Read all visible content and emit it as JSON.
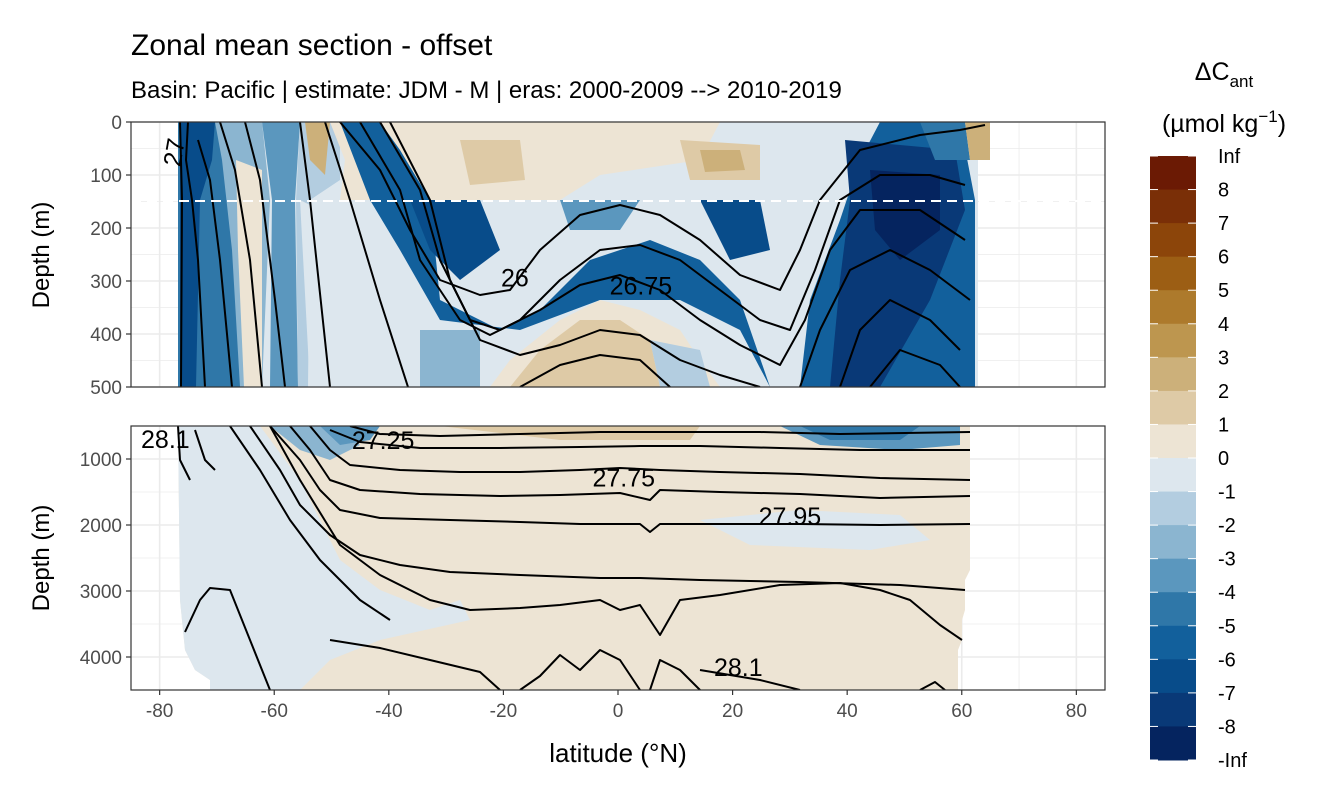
{
  "title": "Zonal mean section - offset",
  "subtitle": "Basin: Pacific | estimate: JDM - M | eras: 2000-2009 --> 2010-2019",
  "chart_data": {
    "type": "heatmap",
    "title": "Zonal mean section - offset",
    "subtitle": "Basin: Pacific | estimate: JDM - M | eras: 2000-2009 --> 2010-2019",
    "xlabel": "latitude (°N)",
    "ylabel": "Depth (m)",
    "xlim": [
      -85,
      85
    ],
    "x_ticks": [
      -80,
      -60,
      -40,
      -20,
      0,
      20,
      40,
      60,
      80
    ],
    "panels": [
      {
        "name": "upper",
        "ylim": [
          0,
          500
        ],
        "y_ticks": [
          0,
          100,
          200,
          300,
          400,
          500
        ],
        "reference_depth": 150
      },
      {
        "name": "lower",
        "ylim": [
          500,
          4500
        ],
        "y_ticks": [
          1000,
          2000,
          3000,
          4000
        ]
      }
    ],
    "data_extent_lat": [
      -77,
      62
    ],
    "legend": {
      "title_main": "ΔC",
      "title_sub": "ant",
      "unit_main": "(µmol kg",
      "unit_sup": "−1",
      "unit_end": ")",
      "position": "right",
      "labels": [
        "Inf",
        "8",
        "7",
        "6",
        "5",
        "4",
        "3",
        "2",
        "1",
        "0",
        "-1",
        "-2",
        "-3",
        "-4",
        "-5",
        "-6",
        "-7",
        "-8",
        "-Inf"
      ],
      "colors": [
        "#6b1a04",
        "#7a2f07",
        "#8c450a",
        "#9c5e14",
        "#ad7a2c",
        "#bd964f",
        "#ccb07a",
        "#decaa6",
        "#ede4d4",
        "#dde7ee",
        "#b3cde0",
        "#8bb5d0",
        "#5b97be",
        "#2f77a8",
        "#12609c",
        "#084c8a",
        "#093977",
        "#05245f"
      ]
    },
    "contours": [
      {
        "label": "26",
        "panel": "upper",
        "at": [
          -18,
          310
        ]
      },
      {
        "label": "26.75",
        "panel": "upper",
        "at": [
          4,
          325
        ]
      },
      {
        "label": "27",
        "panel": "upper",
        "at": [
          -76,
          60
        ]
      },
      {
        "label": "27.25",
        "panel": "lower",
        "at": [
          -41,
          850
        ]
      },
      {
        "label": "27.75",
        "panel": "lower",
        "at": [
          1,
          1420
        ]
      },
      {
        "label": "27.95",
        "panel": "lower",
        "at": [
          30,
          2000
        ]
      },
      {
        "label": "28.1",
        "panel": "lower",
        "at": [
          -79,
          830
        ]
      },
      {
        "label": "28.1",
        "panel": "lower",
        "at": [
          21,
          4290
        ]
      }
    ]
  }
}
